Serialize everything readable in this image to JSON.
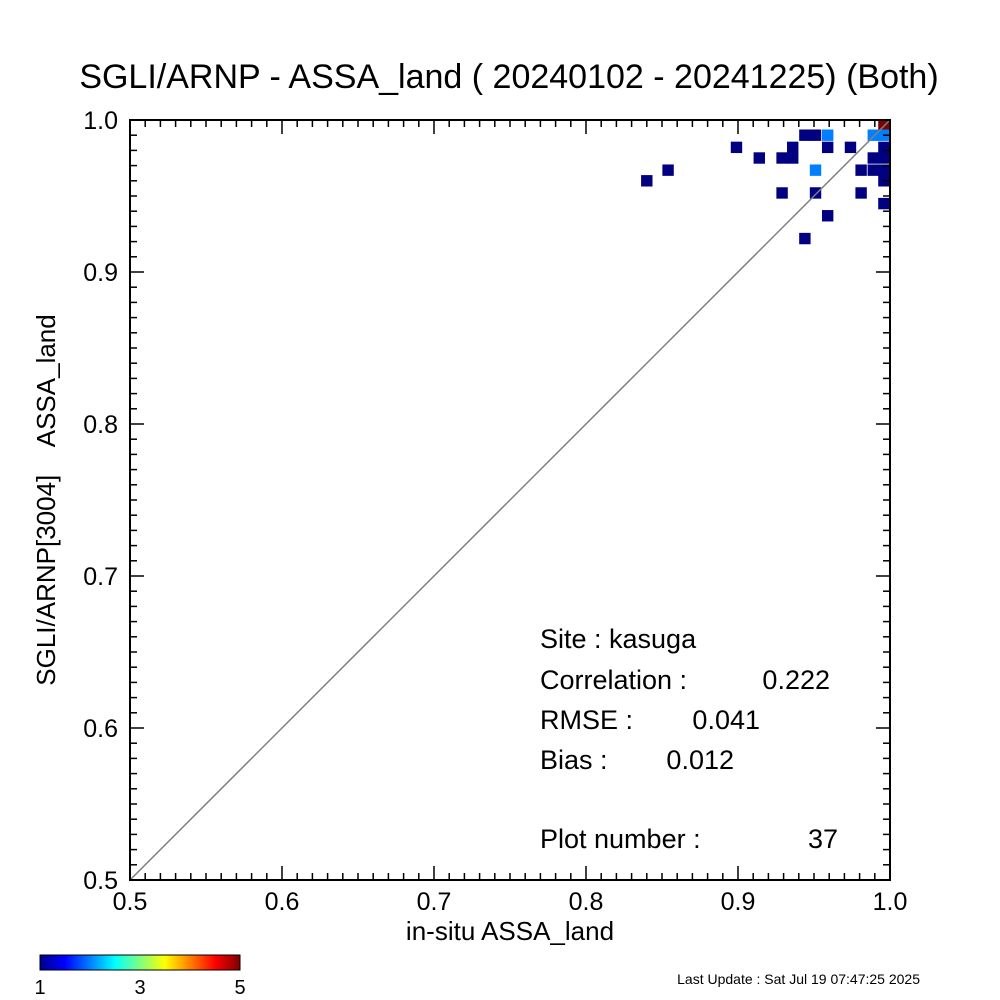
{
  "chart_data": {
    "type": "heatmap",
    "title": "SGLI/ARNP - ASSA_land ( 20240102 - 20241225) (Both)",
    "xlabel": "in-situ ASSA_land",
    "ylabel": "SGLI/ARNP[3004]    ASSA_land",
    "xlim": [
      0.5,
      1.0
    ],
    "ylim": [
      0.5,
      1.0
    ],
    "x_ticks": [
      "0.5",
      "0.6",
      "0.7",
      "0.8",
      "0.9",
      "1.0"
    ],
    "y_ticks": [
      "0.5",
      "0.6",
      "0.7",
      "0.8",
      "0.9",
      "1.0"
    ],
    "one_to_one_line": true,
    "bin_size": 0.0075,
    "colorbar": {
      "min": 1,
      "max": 5,
      "tick_labels": [
        "1",
        "3",
        "5"
      ]
    },
    "cells": [
      {
        "x": 0.84,
        "y": 0.96,
        "count": 1
      },
      {
        "x": 0.854,
        "y": 0.967,
        "count": 1
      },
      {
        "x": 0.899,
        "y": 0.982,
        "count": 1
      },
      {
        "x": 0.914,
        "y": 0.975,
        "count": 1
      },
      {
        "x": 0.929,
        "y": 0.975,
        "count": 1
      },
      {
        "x": 0.936,
        "y": 0.982,
        "count": 1
      },
      {
        "x": 0.936,
        "y": 0.975,
        "count": 1
      },
      {
        "x": 0.944,
        "y": 0.99,
        "count": 1
      },
      {
        "x": 0.951,
        "y": 0.99,
        "count": 1
      },
      {
        "x": 0.959,
        "y": 0.99,
        "count": 2
      },
      {
        "x": 0.959,
        "y": 0.982,
        "count": 1
      },
      {
        "x": 0.951,
        "y": 0.967,
        "count": 2
      },
      {
        "x": 0.929,
        "y": 0.952,
        "count": 1
      },
      {
        "x": 0.951,
        "y": 0.952,
        "count": 1
      },
      {
        "x": 0.959,
        "y": 0.937,
        "count": 1
      },
      {
        "x": 0.944,
        "y": 0.922,
        "count": 1
      },
      {
        "x": 0.974,
        "y": 0.982,
        "count": 1
      },
      {
        "x": 0.981,
        "y": 0.967,
        "count": 1
      },
      {
        "x": 0.981,
        "y": 0.952,
        "count": 1
      },
      {
        "x": 0.989,
        "y": 0.99,
        "count": 2
      },
      {
        "x": 0.989,
        "y": 0.975,
        "count": 1
      },
      {
        "x": 0.989,
        "y": 0.967,
        "count": 1
      },
      {
        "x": 0.996,
        "y": 0.997,
        "count": 5
      },
      {
        "x": 0.996,
        "y": 0.99,
        "count": 2
      },
      {
        "x": 0.996,
        "y": 0.982,
        "count": 1
      },
      {
        "x": 0.996,
        "y": 0.975,
        "count": 1
      },
      {
        "x": 0.996,
        "y": 0.967,
        "count": 1
      },
      {
        "x": 0.996,
        "y": 0.96,
        "count": 1
      },
      {
        "x": 0.996,
        "y": 0.945,
        "count": 1
      }
    ]
  },
  "stats": {
    "site": "Site : kasuga",
    "correlation_label": "Correlation :",
    "correlation_value": "0.222",
    "rmse_label": "RMSE :",
    "rmse_value": "0.041",
    "bias_label": "Bias :",
    "bias_value": "0.012",
    "plot_number_label": "Plot number :",
    "plot_number_value": "37"
  },
  "footer": {
    "last_update": "Last Update : Sat Jul 19 07:47:25 2025"
  }
}
